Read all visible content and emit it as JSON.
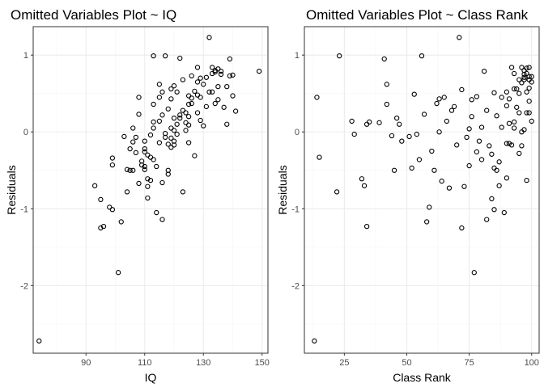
{
  "chart_data": [
    {
      "type": "scatter",
      "title": "Omitted Variables Plot ~ IQ",
      "xlabel": "IQ",
      "ylabel": "Residuals",
      "xlim": [
        72,
        152
      ],
      "ylim": [
        -2.88,
        1.37
      ],
      "xticks": [
        90,
        110,
        130,
        150
      ],
      "yticks": [
        -2,
        -1,
        0,
        1
      ],
      "xtick_labels": [
        "90",
        "110",
        "130",
        "150"
      ],
      "ytick_labels": [
        "-2",
        "-1",
        "0",
        "1"
      ],
      "grid": true,
      "points": [
        [
          74,
          -2.72
        ],
        [
          93,
          -0.7
        ],
        [
          95,
          -0.88
        ],
        [
          95,
          -1.25
        ],
        [
          96,
          -1.23
        ],
        [
          98,
          -0.98
        ],
        [
          99,
          -1.01
        ],
        [
          99,
          -0.34
        ],
        [
          99,
          -0.43
        ],
        [
          101,
          -1.83
        ],
        [
          102,
          -1.17
        ],
        [
          103,
          -0.06
        ],
        [
          104,
          -0.78
        ],
        [
          104,
          -0.49
        ],
        [
          105,
          -0.5
        ],
        [
          105,
          -0.22
        ],
        [
          106,
          -0.5
        ],
        [
          106,
          0.05
        ],
        [
          106,
          -0.13
        ],
        [
          107,
          -0.27
        ],
        [
          107,
          -0.07
        ],
        [
          108,
          0.23
        ],
        [
          108,
          0.45
        ],
        [
          108,
          -0.67
        ],
        [
          109,
          -0.43
        ],
        [
          109,
          -0.38
        ],
        [
          110,
          -0.26
        ],
        [
          110,
          -0.22
        ],
        [
          110,
          -0.12
        ],
        [
          110,
          -0.49
        ],
        [
          110,
          -0.45
        ],
        [
          111,
          -0.71
        ],
        [
          111,
          -0.86
        ],
        [
          111,
          -0.61
        ],
        [
          111,
          -0.3
        ],
        [
          112,
          -0.04
        ],
        [
          112,
          -0.33
        ],
        [
          112,
          -0.63
        ],
        [
          113,
          -0.36
        ],
        [
          113,
          0.05
        ],
        [
          113,
          0.13
        ],
        [
          113,
          0.36
        ],
        [
          113,
          0.99
        ],
        [
          114,
          -0.45
        ],
        [
          114,
          -1.05
        ],
        [
          115,
          -0.14
        ],
        [
          115,
          0.14
        ],
        [
          115,
          0.45
        ],
        [
          115,
          0.62
        ],
        [
          116,
          0.22
        ],
        [
          116,
          0.52
        ],
        [
          116,
          -0.66
        ],
        [
          116,
          -1.14
        ],
        [
          117,
          0.99
        ],
        [
          117,
          -0.02
        ],
        [
          117,
          -0.07
        ],
        [
          118,
          0.3
        ],
        [
          118,
          -0.16
        ],
        [
          118,
          -0.5
        ],
        [
          118,
          -0.55
        ],
        [
          119,
          0.56
        ],
        [
          119,
          0.05
        ],
        [
          119,
          -0.08
        ],
        [
          119,
          -0.2
        ],
        [
          119,
          0.43
        ],
        [
          120,
          0.6
        ],
        [
          120,
          0.18
        ],
        [
          120,
          0.02
        ],
        [
          120,
          -0.12
        ],
        [
          120,
          -0.17
        ],
        [
          121,
          0.52
        ],
        [
          121,
          0.1
        ],
        [
          121,
          -0.03
        ],
        [
          122,
          0.96
        ],
        [
          122,
          0.18
        ],
        [
          122,
          0.22
        ],
        [
          123,
          0.28
        ],
        [
          123,
          -0.78
        ],
        [
          123,
          0.68
        ],
        [
          124,
          0.12
        ],
        [
          124,
          0.02
        ],
        [
          124,
          0.25
        ],
        [
          125,
          0.47
        ],
        [
          125,
          0.2
        ],
        [
          125,
          0.09
        ],
        [
          125,
          0.36
        ],
        [
          125,
          -0.14
        ],
        [
          126,
          0.44
        ],
        [
          126,
          0.37
        ],
        [
          127,
          0.53
        ],
        [
          127,
          -0.31
        ],
        [
          128,
          0.65
        ],
        [
          128,
          0.48
        ],
        [
          128,
          0.25
        ],
        [
          128,
          0.84
        ],
        [
          129,
          0.7
        ],
        [
          129,
          0.45
        ],
        [
          129,
          0.15
        ],
        [
          130,
          0.62
        ],
        [
          130,
          0.08
        ],
        [
          131,
          0.33
        ],
        [
          131,
          0.71
        ],
        [
          132,
          1.23
        ],
        [
          132,
          0.52
        ],
        [
          133,
          0.84
        ],
        [
          133,
          0.52
        ],
        [
          133,
          0.76
        ],
        [
          134,
          0.37
        ],
        [
          134,
          0.78
        ],
        [
          135,
          0.59
        ],
        [
          135,
          0.82
        ],
        [
          135,
          0.42
        ],
        [
          136,
          0.75
        ],
        [
          136,
          0.79
        ],
        [
          137,
          0.32
        ],
        [
          138,
          0.59
        ],
        [
          138,
          0.1
        ],
        [
          139,
          0.95
        ],
        [
          139,
          0.73
        ],
        [
          140,
          0.47
        ],
        [
          140,
          0.74
        ],
        [
          141,
          0.27
        ],
        [
          149,
          0.79
        ],
        [
          134,
          0.8
        ],
        [
          126,
          0.73
        ]
      ]
    },
    {
      "type": "scatter",
      "title": "Omitted Variables Plot ~ Class Rank",
      "xlabel": "Class Rank",
      "ylabel": "Residuals",
      "xlim": [
        9,
        103
      ],
      "ylim": [
        -2.88,
        1.37
      ],
      "xticks": [
        25,
        50,
        75,
        100
      ],
      "yticks": [
        -2,
        -1,
        0,
        1
      ],
      "xtick_labels": [
        "25",
        "50",
        "75",
        "100"
      ],
      "ytick_labels": [
        "-2",
        "-1",
        "0",
        "1"
      ],
      "grid": true,
      "points": [
        [
          13,
          -2.72
        ],
        [
          14,
          0.45
        ],
        [
          15,
          -0.33
        ],
        [
          22,
          -0.78
        ],
        [
          23,
          0.99
        ],
        [
          28,
          0.14
        ],
        [
          29,
          -0.03
        ],
        [
          32,
          -0.61
        ],
        [
          33,
          -0.7
        ],
        [
          34,
          -1.23
        ],
        [
          34,
          0.1
        ],
        [
          35,
          0.13
        ],
        [
          39,
          0.12
        ],
        [
          41,
          0.95
        ],
        [
          42,
          0.36
        ],
        [
          42,
          0.62
        ],
        [
          44,
          -0.05
        ],
        [
          45,
          -0.5
        ],
        [
          46,
          0.18
        ],
        [
          47,
          0.1
        ],
        [
          48,
          -0.12
        ],
        [
          51,
          -0.06
        ],
        [
          52,
          -0.47
        ],
        [
          53,
          0.49
        ],
        [
          54,
          -0.03
        ],
        [
          55,
          -0.36
        ],
        [
          56,
          0.99
        ],
        [
          57,
          0.23
        ],
        [
          58,
          -1.17
        ],
        [
          59,
          -0.98
        ],
        [
          60,
          -0.25
        ],
        [
          61,
          -0.5
        ],
        [
          62,
          0.37
        ],
        [
          63,
          0.0
        ],
        [
          63,
          0.43
        ],
        [
          64,
          -0.64
        ],
        [
          65,
          0.45
        ],
        [
          66,
          0.14
        ],
        [
          67,
          -0.73
        ],
        [
          68,
          0.28
        ],
        [
          69,
          0.33
        ],
        [
          70,
          -0.17
        ],
        [
          71,
          1.23
        ],
        [
          72,
          0.55
        ],
        [
          72,
          -1.25
        ],
        [
          73,
          -0.71
        ],
        [
          74,
          -0.07
        ],
        [
          75,
          0.04
        ],
        [
          75,
          -0.44
        ],
        [
          76,
          0.42
        ],
        [
          76,
          0.2
        ],
        [
          77,
          -1.83
        ],
        [
          78,
          -0.26
        ],
        [
          78,
          0.46
        ],
        [
          79,
          -0.12
        ],
        [
          80,
          0.06
        ],
        [
          80,
          -0.36
        ],
        [
          81,
          0.79
        ],
        [
          82,
          -1.14
        ],
        [
          82,
          0.28
        ],
        [
          83,
          -0.18
        ],
        [
          84,
          -0.29
        ],
        [
          84,
          -0.87
        ],
        [
          85,
          0.51
        ],
        [
          85,
          -0.47
        ],
        [
          85,
          -1.01
        ],
        [
          86,
          -0.5
        ],
        [
          86,
          0.21
        ],
        [
          87,
          -0.39
        ],
        [
          87,
          -0.7
        ],
        [
          88,
          0.45
        ],
        [
          88,
          0.06
        ],
        [
          89,
          -1.05
        ],
        [
          90,
          -0.15
        ],
        [
          90,
          0.52
        ],
        [
          90,
          0.34
        ],
        [
          91,
          0.43
        ],
        [
          91,
          -0.15
        ],
        [
          91,
          0.11
        ],
        [
          92,
          -0.17
        ],
        [
          92,
          0.84
        ],
        [
          93,
          0.13
        ],
        [
          93,
          0.05
        ],
        [
          93,
          0.76
        ],
        [
          94,
          0.56
        ],
        [
          94,
          0.32
        ],
        [
          95,
          -0.28
        ],
        [
          95,
          0.5
        ],
        [
          95,
          0.25
        ],
        [
          95,
          0.68
        ],
        [
          96,
          0.84
        ],
        [
          96,
          0.0
        ],
        [
          96,
          -0.18
        ],
        [
          96,
          0.64
        ],
        [
          97,
          0.75
        ],
        [
          97,
          0.68
        ],
        [
          97,
          0.8
        ],
        [
          97,
          0.71
        ],
        [
          97,
          0.03
        ],
        [
          98,
          0.52
        ],
        [
          98,
          0.76
        ],
        [
          98,
          -0.63
        ],
        [
          98,
          0.83
        ],
        [
          98,
          0.25
        ],
        [
          99,
          0.57
        ],
        [
          99,
          0.4
        ],
        [
          99,
          0.72
        ],
        [
          99,
          0.84
        ],
        [
          99,
          0.25
        ],
        [
          99,
          0.68
        ],
        [
          100,
          0.65
        ],
        [
          100,
          0.14
        ],
        [
          100,
          0.72
        ],
        [
          93,
          0.56
        ],
        [
          90,
          -0.6
        ]
      ]
    }
  ]
}
